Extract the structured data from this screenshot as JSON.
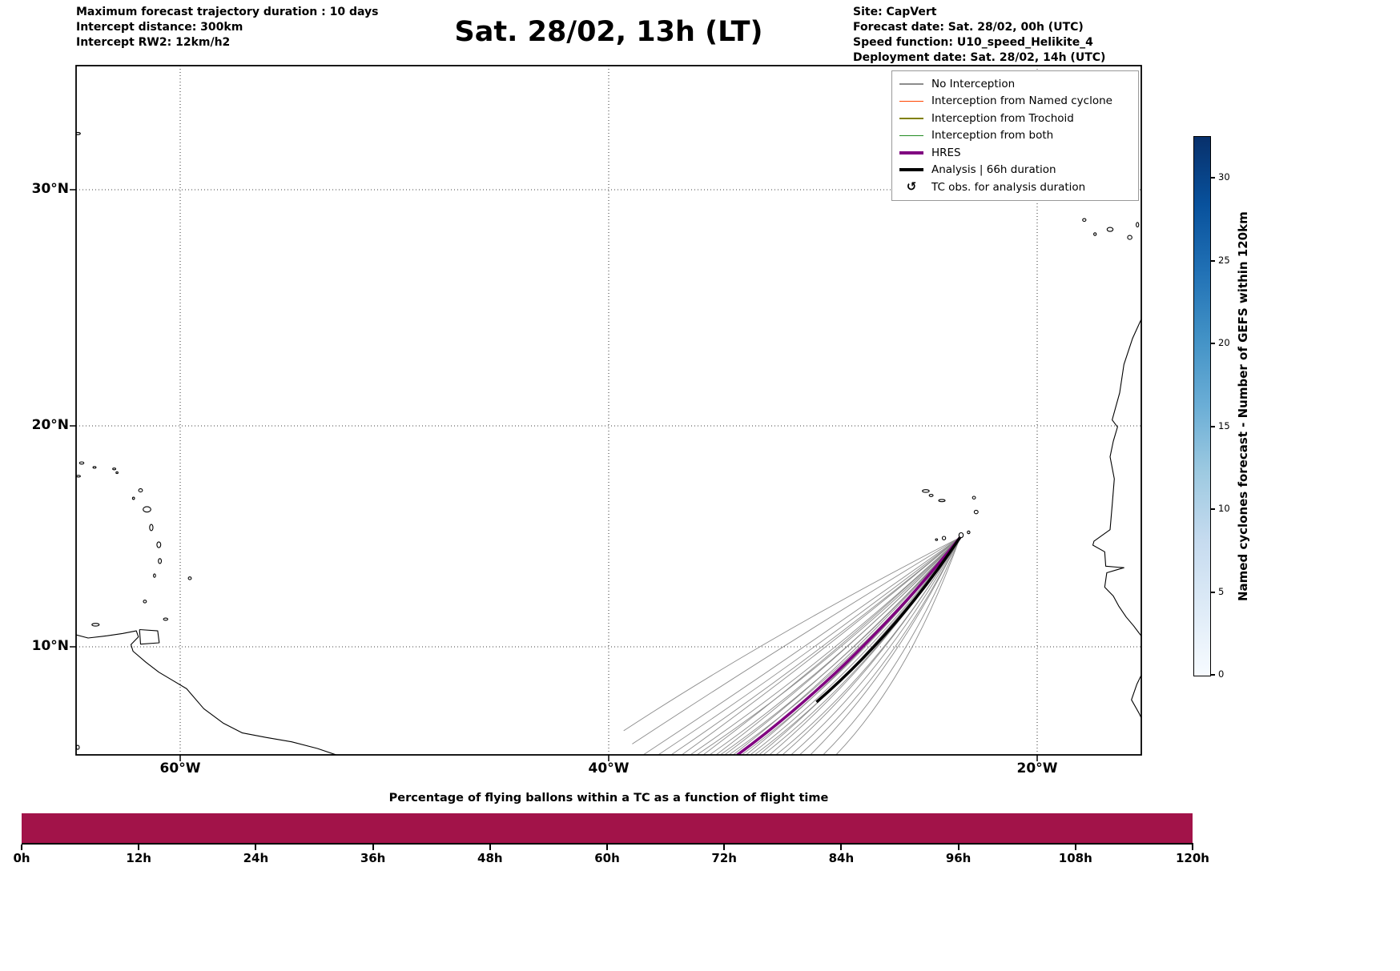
{
  "header": {
    "left_lines": [
      "Maximum forecast trajectory duration : 10 days",
      "Intercept distance: 300km",
      "Intercept RW2: 12km/h2"
    ],
    "right_lines": [
      "Site: CapVert",
      "Forecast date: Sat. 28/02, 00h (UTC)",
      "Speed function: U10_speed_Helikite_4",
      "Deployment date: Sat. 28/02, 14h (UTC)"
    ]
  },
  "legend": {
    "items": [
      {
        "label": "No Interception",
        "color": "#8c8c8c",
        "thick": false
      },
      {
        "label": "Interception from Named cyclone",
        "color": "#ff4500",
        "thick": false
      },
      {
        "label": "Interception from Trochoid",
        "color": "#808000",
        "thick": false
      },
      {
        "label": "Interception from both",
        "color": "#228b22",
        "thick": false
      },
      {
        "label": "HRES",
        "color": "#800080",
        "thick": true
      },
      {
        "label": "Analysis | 66h duration",
        "color": "#000000",
        "thick": true
      },
      {
        "label": "TC obs. for analysis duration",
        "symbol": "↺"
      }
    ]
  },
  "map_axes": {
    "lat_ticks": [
      {
        "label": "30°N",
        "lat": 30
      },
      {
        "label": "20°N",
        "lat": 20
      },
      {
        "label": "10°N",
        "lat": 10
      }
    ],
    "lon_ticks": [
      {
        "label": "60°W",
        "lon": -60
      },
      {
        "label": "40°W",
        "lon": -40
      },
      {
        "label": "20°W",
        "lon": -20
      }
    ]
  },
  "colorbar": {
    "label": "Named cyclones forecast - Number of GEFS within 120km",
    "ticks": [
      {
        "value": 0,
        "label": "0"
      },
      {
        "value": 5,
        "label": "5"
      },
      {
        "value": 10,
        "label": "10"
      },
      {
        "value": 15,
        "label": "15"
      },
      {
        "value": 20,
        "label": "20"
      },
      {
        "value": 25,
        "label": "25"
      },
      {
        "value": 30,
        "label": "30"
      }
    ],
    "value_range": [
      0,
      32.5
    ],
    "gradient": [
      "#08306b",
      "#08519c",
      "#2171b5",
      "#4292c6",
      "#6baed6",
      "#9ecae1",
      "#c6dbef",
      "#deebf7",
      "#f7fbff"
    ]
  },
  "chart_data": [
    {
      "type": "line",
      "title": "Sat. 28/02, 13h (LT)",
      "projection": "lon-lat map",
      "extent": {
        "lon_min": -64.9,
        "lon_max": -15.1,
        "lat_min": 5.1,
        "lat_max": 35.3
      },
      "site": {
        "name": "CapVert",
        "lon": -23.6,
        "lat": 14.95
      },
      "start": [
        -23.6,
        14.95
      ],
      "lat_tick_labels": [
        "30°N",
        "20°N",
        "10°N"
      ],
      "lon_tick_labels": [
        "60°W",
        "40°W",
        "20°W"
      ],
      "ensemble_no_interception": [
        {
          "end": [
            -39.3,
            6.2
          ],
          "bend": 0.1
        },
        {
          "end": [
            -38.9,
            5.6
          ],
          "bend": 0.08
        },
        {
          "end": [
            -38.4,
            5.1
          ],
          "bend": 0.06
        },
        {
          "end": [
            -37.7,
            5.1
          ],
          "bend": 0.05
        },
        {
          "end": [
            -37.1,
            5.1
          ],
          "bend": 0.045
        },
        {
          "end": [
            -36.6,
            5.1
          ],
          "bend": 0.05
        },
        {
          "end": [
            -36.2,
            5.1
          ],
          "bend": 0.03
        },
        {
          "end": [
            -35.9,
            5.1
          ],
          "bend": 0.02
        },
        {
          "end": [
            -35.6,
            5.1
          ],
          "bend": 0.04
        },
        {
          "end": [
            -35.3,
            5.1
          ],
          "bend": 0.02
        },
        {
          "end": [
            -35.0,
            5.1
          ],
          "bend": 0.03
        },
        {
          "end": [
            -34.8,
            5.1
          ],
          "bend": 0.01
        },
        {
          "end": [
            -34.6,
            5.1
          ],
          "bend": 0.02
        },
        {
          "end": [
            -34.4,
            5.1
          ],
          "bend": 0.0
        },
        {
          "end": [
            -34.2,
            5.1
          ],
          "bend": 0.02
        },
        {
          "end": [
            -34.0,
            5.1
          ],
          "bend": 0.01
        },
        {
          "end": [
            -33.8,
            5.1
          ],
          "bend": 0.0
        },
        {
          "end": [
            -33.6,
            5.1
          ],
          "bend": 0.015
        },
        {
          "end": [
            -33.4,
            5.1
          ],
          "bend": 0.0
        },
        {
          "end": [
            -33.2,
            5.1
          ],
          "bend": -0.01
        },
        {
          "end": [
            -33.0,
            5.1
          ],
          "bend": 0.005
        },
        {
          "end": [
            -32.8,
            5.1
          ],
          "bend": -0.01
        },
        {
          "end": [
            -32.5,
            5.1
          ],
          "bend": 0.0
        },
        {
          "end": [
            -32.2,
            5.1
          ],
          "bend": -0.02
        },
        {
          "end": [
            -31.9,
            5.1
          ],
          "bend": -0.01
        },
        {
          "end": [
            -31.5,
            5.1
          ],
          "bend": -0.02
        },
        {
          "end": [
            -31.1,
            5.1
          ],
          "bend": -0.03
        },
        {
          "end": [
            -30.6,
            5.1
          ],
          "bend": -0.02
        },
        {
          "end": [
            -30.0,
            5.1
          ],
          "bend": -0.04
        },
        {
          "end": [
            -29.4,
            5.1
          ],
          "bend": -0.05
        }
      ],
      "hres": {
        "end": [
          -34.0,
          5.1
        ],
        "bend": 0.005
      },
      "analysis": {
        "control": [
          -26.6,
          10.6
        ],
        "end": [
          -30.3,
          7.5
        ],
        "duration_label": "66h"
      },
      "coastlines": {
        "paths": [
          [
            [
              -64.9,
              10.55
            ],
            [
              -64.3,
              10.4
            ],
            [
              -63.4,
              10.5
            ],
            [
              -62.7,
              10.6
            ],
            [
              -62.05,
              10.72
            ],
            [
              -61.95,
              10.45
            ],
            [
              -62.3,
              10.1
            ],
            [
              -62.2,
              9.8
            ],
            [
              -61.6,
              9.3
            ],
            [
              -61.0,
              8.85
            ],
            [
              -60.3,
              8.45
            ],
            [
              -59.7,
              8.1
            ],
            [
              -58.9,
              7.2
            ],
            [
              -58.0,
              6.55
            ],
            [
              -57.1,
              6.1
            ],
            [
              -56.0,
              5.9
            ],
            [
              -54.8,
              5.7
            ],
            [
              -53.6,
              5.4
            ],
            [
              -52.7,
              5.1
            ]
          ],
          [
            [
              -61.9,
              10.78
            ],
            [
              -61.05,
              10.72
            ],
            [
              -60.98,
              10.18
            ],
            [
              -61.85,
              10.12
            ],
            [
              -61.9,
              10.78
            ]
          ],
          [
            [
              -15.1,
              24.6
            ],
            [
              -15.55,
              23.7
            ],
            [
              -15.95,
              22.6
            ],
            [
              -16.15,
              21.4
            ],
            [
              -16.5,
              20.25
            ],
            [
              -16.25,
              19.95
            ],
            [
              -16.45,
              19.3
            ],
            [
              -16.6,
              18.6
            ],
            [
              -16.4,
              17.6
            ],
            [
              -16.5,
              16.4
            ],
            [
              -16.6,
              15.3
            ],
            [
              -17.35,
              14.78
            ],
            [
              -17.4,
              14.6
            ],
            [
              -16.85,
              14.3
            ],
            [
              -16.8,
              13.65
            ],
            [
              -15.95,
              13.58
            ],
            [
              -16.75,
              13.35
            ],
            [
              -16.85,
              12.7
            ],
            [
              -16.45,
              12.3
            ],
            [
              -16.2,
              11.85
            ],
            [
              -15.85,
              11.35
            ],
            [
              -15.5,
              10.95
            ],
            [
              -15.15,
              10.5
            ],
            [
              -14.85,
              10.0
            ],
            [
              -14.65,
              9.45
            ],
            [
              -15.05,
              8.9
            ],
            [
              -15.35,
              8.3
            ],
            [
              -15.6,
              7.6
            ],
            [
              -15.25,
              7.0
            ],
            [
              -15.1,
              6.7
            ]
          ]
        ],
        "islands": [
          [
            -64.78,
            32.38,
            0.12,
            0.05
          ],
          [
            -64.6,
            18.32,
            0.1,
            0.05
          ],
          [
            -64.0,
            18.12,
            0.07,
            0.04
          ],
          [
            -64.75,
            17.72,
            0.09,
            0.04
          ],
          [
            -63.08,
            18.05,
            0.07,
            0.04
          ],
          [
            -62.95,
            17.88,
            0.05,
            0.04
          ],
          [
            -61.85,
            17.08,
            0.09,
            0.07
          ],
          [
            -62.18,
            16.72,
            0.05,
            0.05
          ],
          [
            -61.55,
            16.22,
            0.18,
            0.12
          ],
          [
            -61.35,
            15.4,
            0.08,
            0.14
          ],
          [
            -61.0,
            14.62,
            0.09,
            0.13
          ],
          [
            -60.95,
            13.88,
            0.07,
            0.11
          ],
          [
            -61.2,
            13.22,
            0.05,
            0.08
          ],
          [
            -59.55,
            13.1,
            0.07,
            0.06
          ],
          [
            -61.65,
            12.05,
            0.07,
            0.06
          ],
          [
            -60.68,
            11.25,
            0.1,
            0.05
          ],
          [
            -63.95,
            11.0,
            0.17,
            0.06
          ],
          [
            -64.78,
            5.45,
            0.07,
            0.09
          ],
          [
            -25.2,
            17.05,
            0.16,
            0.06
          ],
          [
            -24.95,
            16.85,
            0.09,
            0.05
          ],
          [
            -24.45,
            16.62,
            0.15,
            0.05
          ],
          [
            -22.95,
            16.75,
            0.07,
            0.06
          ],
          [
            -22.85,
            16.1,
            0.09,
            0.08
          ],
          [
            -23.2,
            15.18,
            0.06,
            0.06
          ],
          [
            -23.55,
            15.05,
            0.1,
            0.11
          ],
          [
            -24.35,
            14.92,
            0.08,
            0.08
          ],
          [
            -24.7,
            14.85,
            0.05,
            0.04
          ],
          [
            -17.8,
            28.72,
            0.08,
            0.06
          ],
          [
            -17.3,
            28.12,
            0.06,
            0.06
          ],
          [
            -16.6,
            28.32,
            0.14,
            0.09
          ],
          [
            -15.68,
            27.98,
            0.1,
            0.09
          ],
          [
            -15.32,
            28.52,
            0.06,
            0.1
          ]
        ]
      }
    },
    {
      "type": "bar",
      "title": "Percentage of flying ballons within a TC as a function of flight time",
      "x_tick_labels": [
        "0h",
        "12h",
        "24h",
        "36h",
        "48h",
        "60h",
        "72h",
        "84h",
        "96h",
        "108h",
        "120h"
      ],
      "values": [
        100,
        100,
        100,
        100,
        100,
        100,
        100,
        100,
        100,
        100,
        100
      ],
      "ylim": [
        0,
        100
      ],
      "bar_color": "#a21349"
    }
  ]
}
